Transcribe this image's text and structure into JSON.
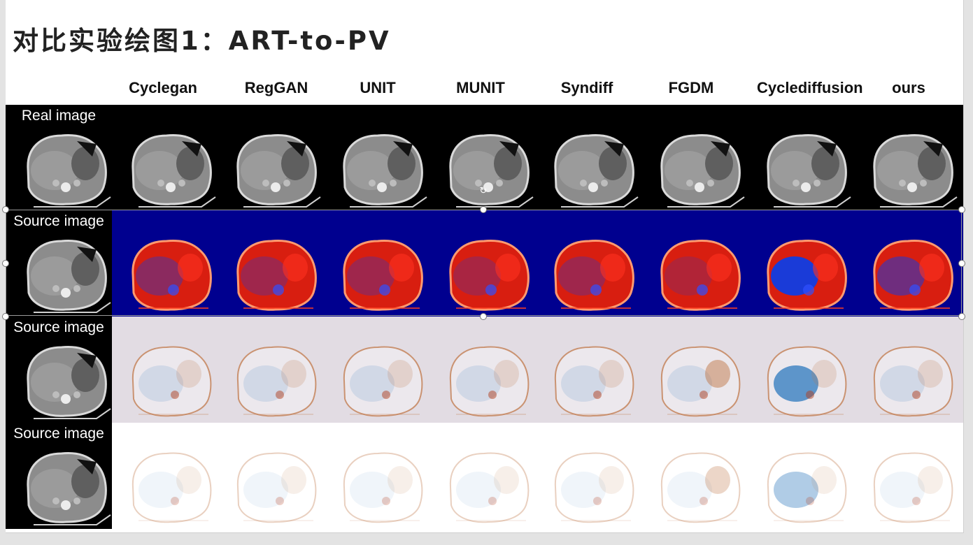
{
  "slide": {
    "title": "对比实验绘图1：ART-to-PV",
    "columns": [
      "Cyclegan",
      "RegGAN",
      "UNIT",
      "MUNIT",
      "Syndiff",
      "FGDM",
      "Cyclediffusion",
      "ours"
    ],
    "rows": [
      {
        "label": "Real image",
        "type": "ct",
        "bg": "#000000",
        "label_color": "#ffffff"
      },
      {
        "label": "Source image",
        "type": "jet",
        "bg": "#00008f",
        "label_color": "#ffffff"
      },
      {
        "label": "Source image",
        "type": "lavender",
        "bg": "#e2dce3",
        "label_color": "#ffffff"
      },
      {
        "label": "Source image",
        "type": "white",
        "bg": "#ffffff",
        "label_color": "#ffffff"
      }
    ]
  },
  "colors": {
    "ct_gray": "#8c8c8c",
    "jet_red": "#d81e10",
    "jet_blue": "#1a3bd8",
    "diverge_orange": "#c0784a",
    "diverge_blue": "#3a7fc0"
  },
  "icons": [
    "rotate-icon",
    "resize-handle"
  ]
}
